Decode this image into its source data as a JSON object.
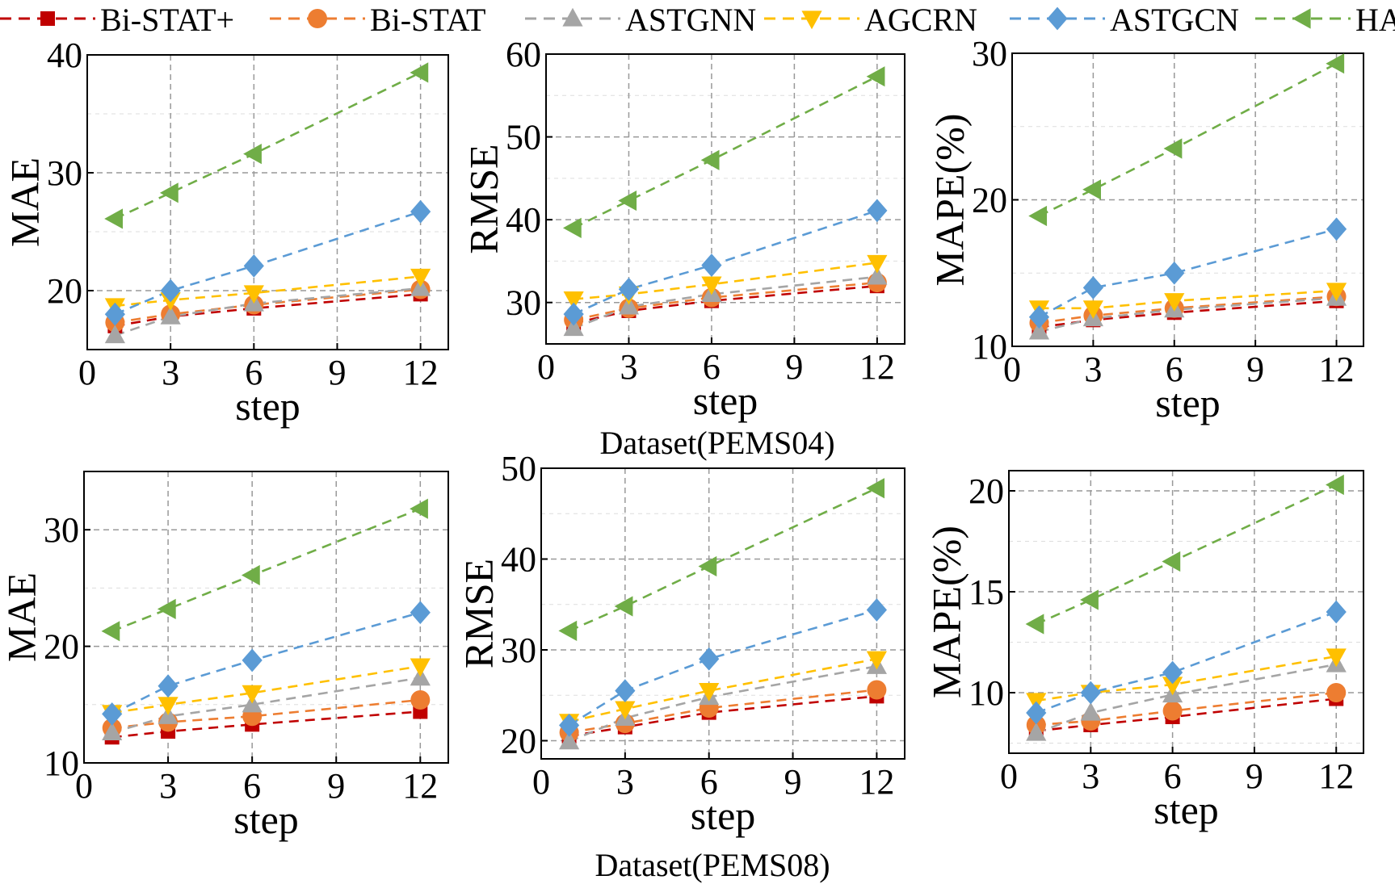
{
  "legend": [
    {
      "name": "Bi-STAT+",
      "color": "#c00000",
      "marker": "square"
    },
    {
      "name": "Bi-STAT",
      "color": "#ed7d31",
      "marker": "circle"
    },
    {
      "name": "ASTGNN",
      "color": "#a5a5a5",
      "marker": "triangle-up"
    },
    {
      "name": "AGCRN",
      "color": "#ffc000",
      "marker": "triangle-down"
    },
    {
      "name": "ASTGCN",
      "color": "#5b9bd5",
      "marker": "diamond"
    },
    {
      "name": "HA",
      "color": "#70ad47",
      "marker": "triangle-left"
    }
  ],
  "datasets": [
    "Dataset(PEMS04)",
    "Dataset(PEMS08)"
  ],
  "chart_data": [
    {
      "type": "line",
      "dataset": "PEMS04",
      "xlabel": "step",
      "ylabel": "MAE",
      "x": [
        1,
        3,
        6,
        12
      ],
      "xticks": [
        0,
        3,
        6,
        9,
        12
      ],
      "xlim": [
        0,
        13
      ],
      "ylim": [
        15,
        40
      ],
      "yticks": [
        20,
        30,
        40
      ],
      "grid": true,
      "series": [
        {
          "name": "Bi-STAT+",
          "values": [
            17.0,
            17.8,
            18.5,
            19.7
          ]
        },
        {
          "name": "Bi-STAT",
          "values": [
            17.3,
            18.0,
            18.8,
            20.1
          ]
        },
        {
          "name": "ASTGNN",
          "values": [
            16.2,
            17.8,
            18.9,
            20.2
          ]
        },
        {
          "name": "AGCRN",
          "values": [
            18.7,
            19.2,
            19.8,
            21.2
          ]
        },
        {
          "name": "ASTGCN",
          "values": [
            18.0,
            20.0,
            22.1,
            26.7
          ]
        },
        {
          "name": "HA",
          "values": [
            26.1,
            28.3,
            31.6,
            38.5
          ]
        }
      ]
    },
    {
      "type": "line",
      "dataset": "PEMS04",
      "xlabel": "step",
      "ylabel": "RMSE",
      "x": [
        1,
        3,
        6,
        12
      ],
      "xticks": [
        0,
        3,
        6,
        9,
        12
      ],
      "xlim": [
        0,
        13
      ],
      "ylim": [
        25,
        60
      ],
      "yticks": [
        30,
        40,
        50,
        60
      ],
      "grid": true,
      "series": [
        {
          "name": "Bi-STAT+",
          "values": [
            27.5,
            29.0,
            30.2,
            32.0
          ]
        },
        {
          "name": "Bi-STAT",
          "values": [
            27.9,
            29.3,
            30.6,
            32.4
          ]
        },
        {
          "name": "ASTGNN",
          "values": [
            26.9,
            29.5,
            31.0,
            33.1
          ]
        },
        {
          "name": "AGCRN",
          "values": [
            30.4,
            31.0,
            32.2,
            34.8
          ]
        },
        {
          "name": "ASTGCN",
          "values": [
            28.6,
            31.6,
            34.5,
            41.1
          ]
        },
        {
          "name": "HA",
          "values": [
            39.0,
            42.3,
            47.2,
            57.3
          ]
        }
      ]
    },
    {
      "type": "line",
      "dataset": "PEMS04",
      "xlabel": "step",
      "ylabel": "MAPE(%)",
      "x": [
        1,
        3,
        6,
        12
      ],
      "xticks": [
        0,
        3,
        6,
        9,
        12
      ],
      "xlim": [
        0,
        13
      ],
      "ylim": [
        10,
        30
      ],
      "yticks": [
        10,
        20,
        30
      ],
      "grid": true,
      "series": [
        {
          "name": "Bi-STAT+",
          "values": [
            11.3,
            11.8,
            12.3,
            13.1
          ]
        },
        {
          "name": "Bi-STAT",
          "values": [
            11.6,
            12.1,
            12.6,
            13.4
          ]
        },
        {
          "name": "ASTGNN",
          "values": [
            11.0,
            11.9,
            12.5,
            13.3
          ]
        },
        {
          "name": "AGCRN",
          "values": [
            12.6,
            12.6,
            13.1,
            13.8
          ]
        },
        {
          "name": "ASTGCN",
          "values": [
            12.0,
            14.0,
            15.0,
            18.0
          ]
        },
        {
          "name": "HA",
          "values": [
            18.9,
            20.7,
            23.5,
            29.3
          ]
        }
      ]
    },
    {
      "type": "line",
      "dataset": "PEMS08",
      "xlabel": "step",
      "ylabel": "MAE",
      "x": [
        1,
        3,
        6,
        12
      ],
      "xticks": [
        0,
        3,
        6,
        9,
        12
      ],
      "xlim": [
        0,
        13
      ],
      "ylim": [
        10,
        35
      ],
      "yticks": [
        10,
        20,
        30
      ],
      "grid": true,
      "series": [
        {
          "name": "Bi-STAT+",
          "values": [
            12.2,
            12.7,
            13.3,
            14.4
          ]
        },
        {
          "name": "Bi-STAT",
          "values": [
            13.0,
            13.5,
            14.0,
            15.4
          ]
        },
        {
          "name": "ASTGNN",
          "values": [
            12.6,
            14.0,
            15.0,
            17.3
          ]
        },
        {
          "name": "AGCRN",
          "values": [
            14.3,
            15.0,
            16.0,
            18.3
          ]
        },
        {
          "name": "ASTGCN",
          "values": [
            14.2,
            16.6,
            18.8,
            22.9
          ]
        },
        {
          "name": "HA",
          "values": [
            21.3,
            23.2,
            26.1,
            31.8
          ]
        }
      ]
    },
    {
      "type": "line",
      "dataset": "PEMS08",
      "xlabel": "step",
      "ylabel": "RMSE",
      "x": [
        1,
        3,
        6,
        12
      ],
      "xticks": [
        0,
        3,
        6,
        9,
        12
      ],
      "xlim": [
        0,
        13
      ],
      "ylim": [
        18,
        50
      ],
      "yticks": [
        20,
        30,
        40,
        50
      ],
      "grid": true,
      "series": [
        {
          "name": "Bi-STAT+",
          "values": [
            20.5,
            21.5,
            23.1,
            24.9
          ]
        },
        {
          "name": "Bi-STAT",
          "values": [
            20.9,
            21.9,
            23.6,
            25.6
          ]
        },
        {
          "name": "ASTGNN",
          "values": [
            19.9,
            22.5,
            24.8,
            28.2
          ]
        },
        {
          "name": "AGCRN",
          "values": [
            22.1,
            23.5,
            25.5,
            29.0
          ]
        },
        {
          "name": "ASTGCN",
          "values": [
            21.7,
            25.5,
            29.0,
            34.4
          ]
        },
        {
          "name": "HA",
          "values": [
            32.1,
            34.8,
            39.2,
            47.8
          ]
        }
      ]
    },
    {
      "type": "line",
      "dataset": "PEMS08",
      "xlabel": "step",
      "ylabel": "MAPE(%)",
      "x": [
        1,
        3,
        6,
        12
      ],
      "xticks": [
        0,
        3,
        6,
        9,
        12
      ],
      "xlim": [
        0,
        13
      ],
      "ylim": [
        7,
        21
      ],
      "yticks": [
        10,
        15,
        20
      ],
      "grid": true,
      "series": [
        {
          "name": "Bi-STAT+",
          "values": [
            8.1,
            8.4,
            8.8,
            9.7
          ]
        },
        {
          "name": "Bi-STAT",
          "values": [
            8.4,
            8.6,
            9.1,
            10.0
          ]
        },
        {
          "name": "ASTGNN",
          "values": [
            8.0,
            9.0,
            9.9,
            11.4
          ]
        },
        {
          "name": "AGCRN",
          "values": [
            9.6,
            10.0,
            10.4,
            11.8
          ]
        },
        {
          "name": "ASTGCN",
          "values": [
            9.0,
            10.0,
            11.0,
            14.0
          ]
        },
        {
          "name": "HA",
          "values": [
            13.4,
            14.6,
            16.5,
            20.3
          ]
        }
      ]
    }
  ]
}
